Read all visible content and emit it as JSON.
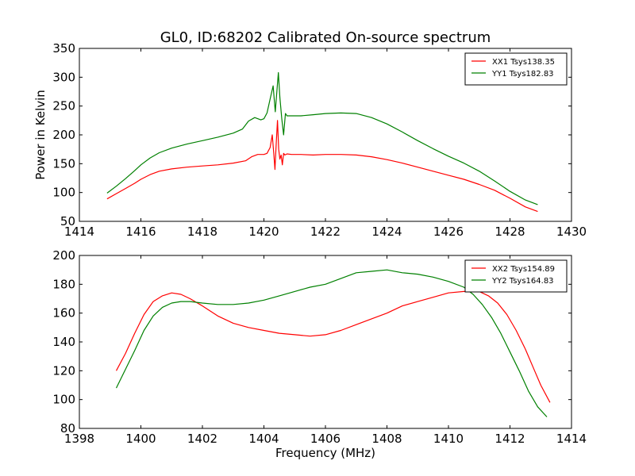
{
  "figure": {
    "title": "GL0, ID:68202 Calibrated On-source spectrum",
    "xlabel": "Frequency (MHz)",
    "top_ylabel": "Power in Kelvin"
  },
  "colors": {
    "xx": "#ff0000",
    "yy": "#008000",
    "axes": "#000000",
    "background": "#ffffff"
  },
  "chart_data": [
    {
      "type": "line",
      "title": "GL0, ID:68202 Calibrated On-source spectrum",
      "xlabel": "",
      "ylabel": "Power in Kelvin",
      "xlim": [
        1414,
        1430
      ],
      "ylim": [
        50,
        350
      ],
      "xticks": [
        1414,
        1416,
        1418,
        1420,
        1422,
        1424,
        1426,
        1428,
        1430
      ],
      "yticks": [
        50,
        100,
        150,
        200,
        250,
        300,
        350
      ],
      "grid": false,
      "legend_position": "top-right",
      "series": [
        {
          "name": "XX1 Tsys138.35",
          "color": "#ff0000",
          "x": [
            1414.9,
            1415.2,
            1415.5,
            1415.8,
            1416.0,
            1416.3,
            1416.6,
            1417.0,
            1417.5,
            1418.0,
            1418.5,
            1419.0,
            1419.4,
            1419.6,
            1419.8,
            1420.0,
            1420.1,
            1420.2,
            1420.27,
            1420.32,
            1420.36,
            1420.4,
            1420.44,
            1420.48,
            1420.52,
            1420.56,
            1420.6,
            1420.64,
            1420.68,
            1420.75,
            1420.9,
            1421.2,
            1421.6,
            1422.0,
            1422.5,
            1423.0,
            1423.5,
            1424.0,
            1424.5,
            1425.0,
            1425.5,
            1426.0,
            1426.5,
            1427.0,
            1427.5,
            1428.0,
            1428.5,
            1428.9
          ],
          "y": [
            89,
            98,
            107,
            116,
            123,
            131,
            137,
            141,
            144,
            146,
            148,
            151,
            155,
            162,
            166,
            166,
            168,
            178,
            200,
            168,
            140,
            185,
            225,
            175,
            158,
            165,
            148,
            168,
            165,
            167,
            166,
            166,
            165,
            166,
            166,
            165,
            162,
            157,
            151,
            144,
            137,
            130,
            123,
            114,
            104,
            90,
            75,
            67
          ]
        },
        {
          "name": "YY1 Tsys182.83",
          "color": "#008000",
          "x": [
            1414.9,
            1415.2,
            1415.5,
            1415.8,
            1416.0,
            1416.3,
            1416.6,
            1417.0,
            1417.5,
            1418.0,
            1418.5,
            1419.0,
            1419.3,
            1419.5,
            1419.7,
            1419.9,
            1420.0,
            1420.1,
            1420.2,
            1420.3,
            1420.37,
            1420.42,
            1420.47,
            1420.52,
            1420.58,
            1420.64,
            1420.7,
            1420.75,
            1420.9,
            1421.2,
            1421.6,
            1422.0,
            1422.5,
            1423.0,
            1423.5,
            1424.0,
            1424.5,
            1425.0,
            1425.5,
            1426.0,
            1426.5,
            1427.0,
            1427.5,
            1428.0,
            1428.5,
            1428.9
          ],
          "y": [
            99,
            111,
            124,
            138,
            148,
            160,
            169,
            177,
            184,
            190,
            196,
            203,
            210,
            224,
            230,
            226,
            228,
            238,
            262,
            285,
            240,
            275,
            308,
            265,
            228,
            200,
            237,
            233,
            233,
            233,
            235,
            237,
            238,
            237,
            230,
            219,
            205,
            190,
            176,
            163,
            151,
            137,
            120,
            102,
            87,
            79
          ]
        }
      ]
    },
    {
      "type": "line",
      "title": "",
      "xlabel": "Frequency (MHz)",
      "ylabel": "",
      "xlim": [
        1398,
        1414
      ],
      "ylim": [
        80,
        200
      ],
      "xticks": [
        1398,
        1400,
        1402,
        1404,
        1406,
        1408,
        1410,
        1412,
        1414
      ],
      "yticks": [
        80,
        100,
        120,
        140,
        160,
        180,
        200
      ],
      "grid": false,
      "legend_position": "top-right",
      "series": [
        {
          "name": "XX2 Tsys154.89",
          "color": "#ff0000",
          "x": [
            1399.2,
            1399.5,
            1399.8,
            1400.1,
            1400.4,
            1400.7,
            1401.0,
            1401.3,
            1401.6,
            1402.0,
            1402.5,
            1403.0,
            1403.5,
            1404.0,
            1404.5,
            1405.0,
            1405.5,
            1406.0,
            1406.5,
            1407.0,
            1407.5,
            1408.0,
            1408.5,
            1409.0,
            1409.5,
            1410.0,
            1410.5,
            1411.0,
            1411.3,
            1411.6,
            1411.9,
            1412.2,
            1412.5,
            1412.8,
            1413.0,
            1413.3
          ],
          "y": [
            120,
            132,
            146,
            159,
            168,
            172,
            174,
            173,
            170,
            165,
            158,
            153,
            150,
            148,
            146,
            145,
            144,
            145,
            148,
            152,
            156,
            160,
            165,
            168,
            171,
            174,
            175,
            175,
            172,
            167,
            159,
            148,
            135,
            120,
            110,
            98
          ]
        },
        {
          "name": "YY2 Tsys164.83",
          "color": "#008000",
          "x": [
            1399.2,
            1399.5,
            1399.8,
            1400.1,
            1400.4,
            1400.7,
            1401.0,
            1401.3,
            1401.6,
            1402.0,
            1402.5,
            1403.0,
            1403.5,
            1404.0,
            1404.5,
            1405.0,
            1405.5,
            1406.0,
            1406.5,
            1407.0,
            1407.5,
            1408.0,
            1408.5,
            1409.0,
            1409.5,
            1410.0,
            1410.5,
            1410.8,
            1411.1,
            1411.4,
            1411.7,
            1412.0,
            1412.3,
            1412.6,
            1412.9,
            1413.2
          ],
          "y": [
            108,
            121,
            134,
            148,
            158,
            164,
            167,
            168,
            168,
            167,
            166,
            166,
            167,
            169,
            172,
            175,
            178,
            180,
            184,
            188,
            189,
            190,
            188,
            187,
            185,
            182,
            178,
            173,
            166,
            157,
            146,
            133,
            120,
            106,
            95,
            88
          ]
        }
      ]
    }
  ]
}
